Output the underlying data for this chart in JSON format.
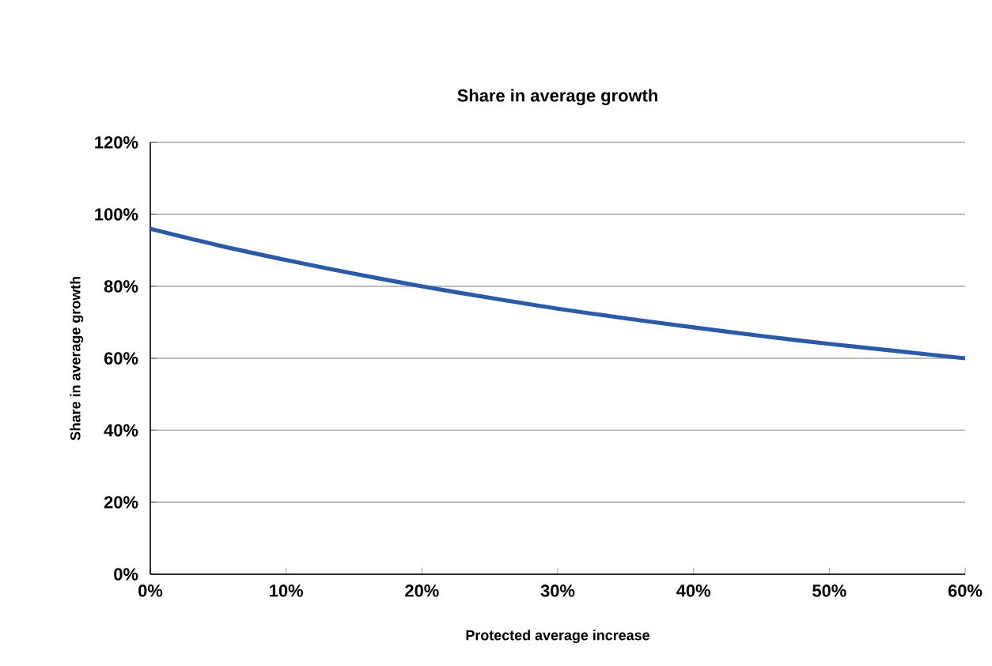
{
  "chart_data": {
    "type": "line",
    "title": "Share in average growth",
    "xlabel": "Protected average increase",
    "ylabel": "Share in average growth",
    "x": [
      0,
      5,
      10,
      15,
      20,
      25,
      30,
      35,
      40,
      45,
      50,
      55,
      60
    ],
    "series": [
      {
        "color": "#2b5ba6",
        "values": [
          96,
          91.4,
          87.3,
          83.5,
          80,
          76.8,
          73.8,
          71.1,
          68.6,
          66.2,
          64,
          62,
          60
        ]
      }
    ],
    "xlim": [
      0,
      60
    ],
    "ylim": [
      0,
      120
    ],
    "xticks": [
      {
        "value": 0,
        "label": "0%"
      },
      {
        "value": 10,
        "label": "10%"
      },
      {
        "value": 20,
        "label": "20%"
      },
      {
        "value": 30,
        "label": "30%"
      },
      {
        "value": 40,
        "label": "40%"
      },
      {
        "value": 50,
        "label": "50%"
      },
      {
        "value": 60,
        "label": "60%"
      }
    ],
    "yticks": [
      {
        "value": 0,
        "label": "0%"
      },
      {
        "value": 20,
        "label": "20%"
      },
      {
        "value": 40,
        "label": "40%"
      },
      {
        "value": 60,
        "label": "60%"
      },
      {
        "value": 80,
        "label": "80%"
      },
      {
        "value": 100,
        "label": "100%"
      },
      {
        "value": 120,
        "label": "120%"
      }
    ],
    "grid": "y",
    "marker": "none",
    "line_style": "solid"
  }
}
